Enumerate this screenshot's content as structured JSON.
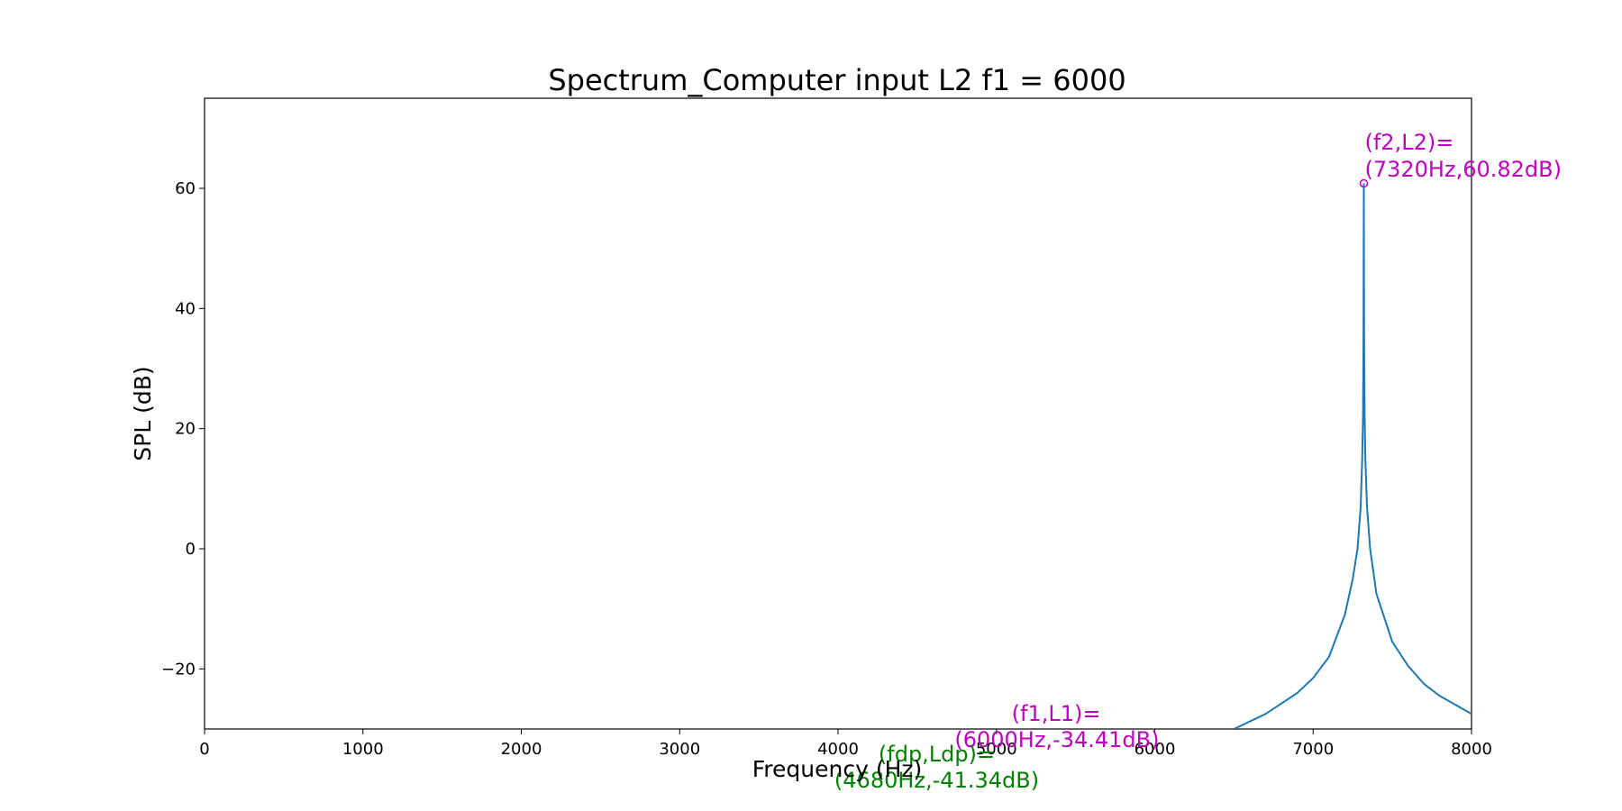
{
  "chart_data": {
    "type": "line",
    "title": "Spectrum_Computer input L2 f1 = 6000",
    "xlabel": "Frequency (Hz)",
    "ylabel": "SPL (dB)",
    "xlim": [
      0,
      8000
    ],
    "ylim": [
      -30,
      75
    ],
    "x_ticks": [
      0,
      1000,
      2000,
      3000,
      4000,
      5000,
      6000,
      7000,
      8000
    ],
    "x_tick_labels": [
      "0",
      "1000",
      "2000",
      "3000",
      "4000",
      "5000",
      "6000",
      "7000",
      "8000"
    ],
    "y_ticks": [
      -20,
      0,
      20,
      40,
      60
    ],
    "y_tick_labels": [
      "−20",
      "0",
      "20",
      "40",
      "60"
    ],
    "grid": false,
    "series_color": "#1f77b4",
    "series": [
      {
        "x": [
          6500,
          6700,
          6900,
          7000,
          7100,
          7200,
          7250,
          7280,
          7300,
          7310,
          7315,
          7318,
          7320,
          7322,
          7325,
          7330,
          7340,
          7360,
          7400,
          7500,
          7600,
          7700,
          7800,
          7900,
          8000
        ],
        "y": [
          -30,
          -27.5,
          -24,
          -21.5,
          -18,
          -11,
          -5,
          0,
          7,
          15,
          22,
          35,
          60.82,
          35,
          22,
          15,
          7,
          0,
          -7.5,
          -15.5,
          -19.5,
          -22.5,
          -24.5,
          -26,
          -27.5
        ]
      }
    ],
    "annotations": [
      {
        "line1": "(f2,L2)=",
        "line2": "(7320Hz,60.82dB)",
        "x": 7320,
        "y": 60.82,
        "color": "#bf00bf",
        "marker": true
      },
      {
        "line1": "(f1,L1)=",
        "line2": "(6000Hz,-34.41dB)",
        "x": 6000,
        "y": -34.41,
        "color": "#bf00bf",
        "marker": true
      },
      {
        "line1": "(fdp,Ldp)=",
        "line2": "(4680Hz,-41.34dB)",
        "x": 4680,
        "y": -41.34,
        "color": "#008000",
        "marker": true
      }
    ]
  }
}
